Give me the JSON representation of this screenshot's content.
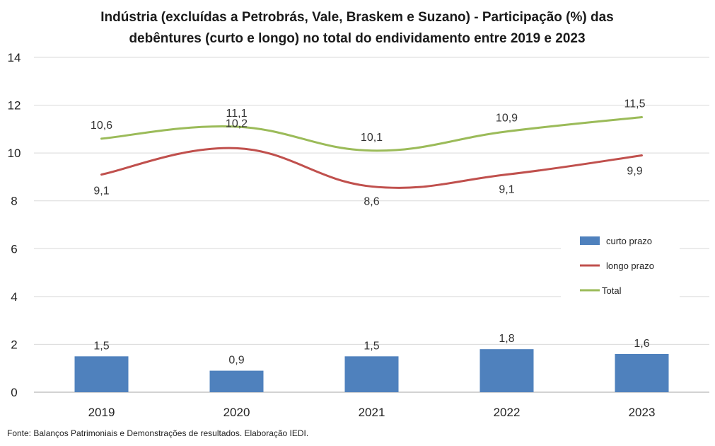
{
  "chart_data": {
    "type": "bar+line",
    "title_line1": "Indústria (excluídas a Petrobrás, Vale, Braskem e Suzano) - Participação (%) das",
    "title_line2": "debêntures (curto e longo) no total do endividamento entre 2019 e 2023",
    "categories": [
      "2019",
      "2020",
      "2021",
      "2022",
      "2023"
    ],
    "y_ticks": [
      "0",
      "2",
      "4",
      "6",
      "8",
      "10",
      "12",
      "14"
    ],
    "ylim": [
      0,
      14
    ],
    "grid": "horizontal",
    "legend_position": "right",
    "series": [
      {
        "name": "curto prazo",
        "type": "bar",
        "color": "#4f81bd",
        "values": [
          1.5,
          0.9,
          1.5,
          1.8,
          1.6
        ],
        "labels": [
          "1,5",
          "0,9",
          "1,5",
          "1,8",
          "1,6"
        ]
      },
      {
        "name": "longo prazo",
        "type": "line",
        "color": "#c0504d",
        "values": [
          9.1,
          10.2,
          8.6,
          9.1,
          9.9
        ],
        "labels": [
          "9,1",
          "10,2",
          "8,6",
          "9,1",
          "9,9"
        ]
      },
      {
        "name": "Total",
        "type": "line",
        "color": "#9bbb59",
        "values": [
          10.6,
          11.1,
          10.1,
          10.9,
          11.5
        ],
        "labels": [
          "10,6",
          "11,1",
          "10,1",
          "10,9",
          "11,5"
        ]
      }
    ],
    "source": "Fonte: Balanços Patrimoniais e Demonstrações de resultados. Elaboração IEDI."
  }
}
